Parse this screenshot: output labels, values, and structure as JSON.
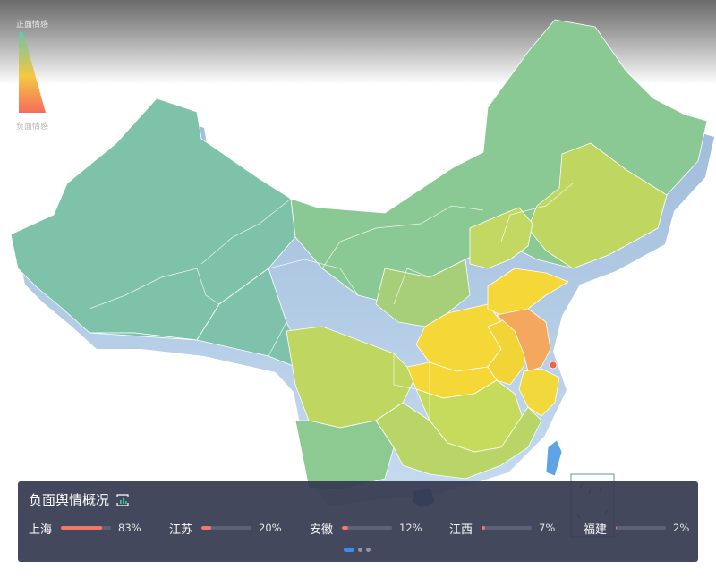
{
  "legend": {
    "top_label": "正面情感",
    "bottom_label": "负面情感",
    "top_color": "#6fc3a8",
    "mid_color": "#f5c842",
    "bottom_color": "#f56b5b"
  },
  "panel": {
    "title": "负面舆情概况",
    "icon": "chart-refresh-icon",
    "stats": [
      {
        "name": "上海",
        "percent_label": "83%",
        "value": 0.83
      },
      {
        "name": "江苏",
        "percent_label": "20%",
        "value": 0.2
      },
      {
        "name": "安徽",
        "percent_label": "12%",
        "value": 0.12
      },
      {
        "name": "江西",
        "percent_label": "7%",
        "value": 0.07
      },
      {
        "name": "福建",
        "percent_label": "2%",
        "value": 0.02
      }
    ],
    "page_count": 3,
    "active_page": 1
  },
  "colors": {
    "positive_green": "#7cc39d",
    "neutral_yellow": "#bfd560",
    "warm_yellow": "#f2d634",
    "negative_orange": "#f0a45c",
    "negative_red": "#f56b5b",
    "panel_bg": "#34384e",
    "bar_fill": "#f3776b"
  }
}
